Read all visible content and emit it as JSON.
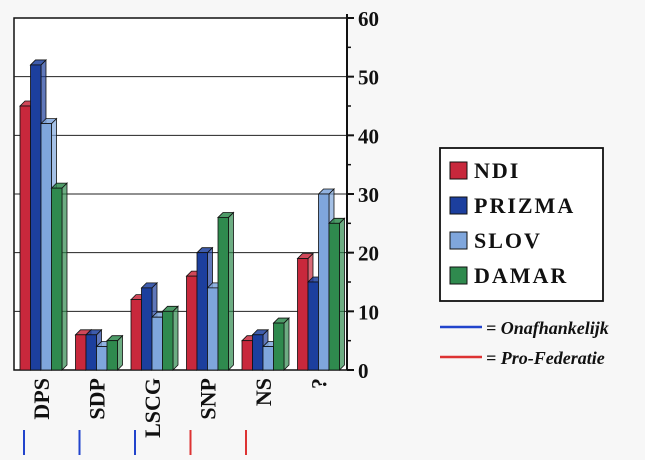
{
  "chart_data": {
    "type": "bar",
    "categories": [
      "DPS",
      "SDP",
      "LSCG",
      "SNP",
      "NS",
      "?"
    ],
    "series": [
      {
        "name": "NDI",
        "color": "#c8283c",
        "values": [
          45,
          6,
          12,
          16,
          5,
          19
        ]
      },
      {
        "name": "PRIZMA",
        "color": "#1c3f9e",
        "values": [
          52,
          6,
          14,
          20,
          6,
          15
        ]
      },
      {
        "name": "SLOV",
        "color": "#7fa6dc",
        "values": [
          42,
          4,
          9,
          14,
          4,
          30
        ]
      },
      {
        "name": "DAMAR",
        "color": "#2f8a4e",
        "values": [
          31,
          5,
          10,
          26,
          8,
          25
        ]
      }
    ],
    "yticks": [
      0,
      10,
      20,
      30,
      40,
      50,
      60
    ],
    "ylim": [
      0,
      60
    ],
    "grid": true,
    "legend_placement": "right",
    "notes": [
      {
        "label": "= Onafhankelijk",
        "color": "#2244cc"
      },
      {
        "label": "= Pro-Federatie",
        "color": "#dd3333"
      }
    ],
    "category_underlines": [
      {
        "categories": [
          "DPS",
          "SDP"
        ],
        "color": "#2244cc"
      },
      {
        "categories": [
          "LSCG"
        ],
        "color": "#2244cc"
      },
      {
        "categories": [
          "SNP",
          "NS"
        ],
        "color": "#dd3333"
      }
    ]
  }
}
